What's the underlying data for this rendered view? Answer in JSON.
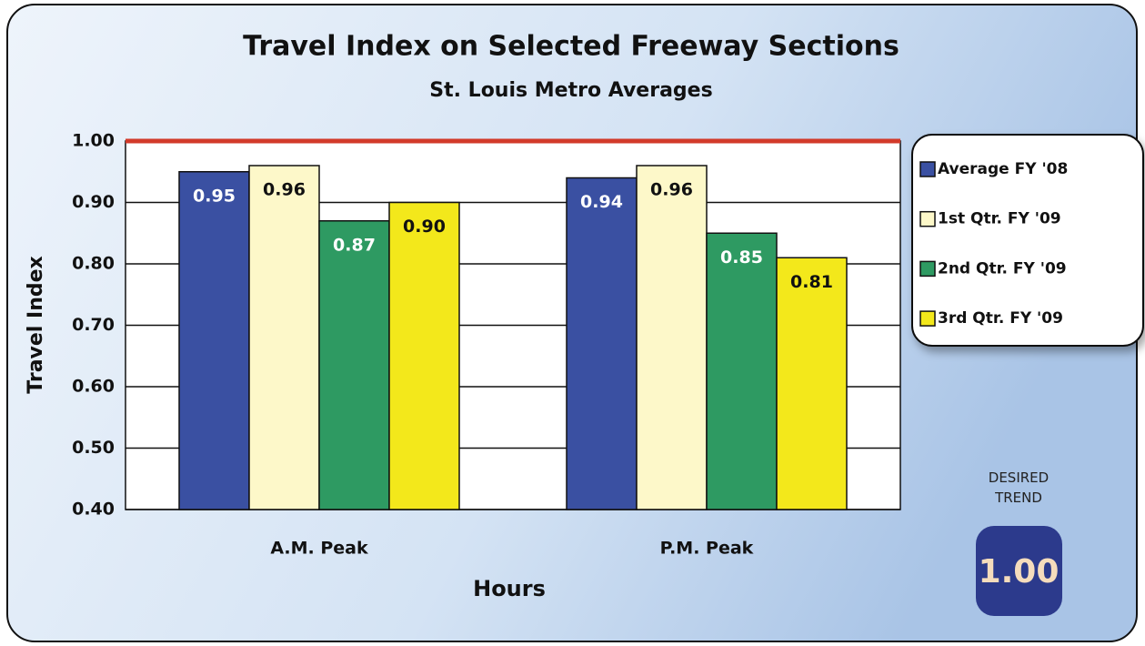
{
  "chart_data": {
    "type": "bar",
    "title": "Travel Index on Selected Freeway Sections",
    "subtitle": "St. Louis Metro Averages",
    "ylabel": "Travel Index",
    "xlabel": "Hours",
    "categories": [
      "A.M. Peak",
      "P.M. Peak"
    ],
    "series": [
      {
        "name": "Average FY '08",
        "color": "#3a50a2",
        "values": [
          0.95,
          0.94
        ],
        "value_labels": [
          "0.95",
          "0.94"
        ]
      },
      {
        "name": "1st Qtr. FY '09",
        "color": "#fdf8c9",
        "values": [
          0.96,
          0.96
        ],
        "value_labels": [
          "0.96",
          "0.96"
        ]
      },
      {
        "name": "2nd Qtr. FY '09",
        "color": "#2e9a62",
        "values": [
          0.87,
          0.85
        ],
        "value_labels": [
          "0.87",
          "0.85"
        ]
      },
      {
        "name": "3rd Qtr. FY '09",
        "color": "#f3e81b",
        "values": [
          0.9,
          0.81
        ],
        "value_labels": [
          "0.90",
          "0.81"
        ]
      }
    ],
    "ylim": [
      0.4,
      1.0
    ],
    "yticks": [
      {
        "value": 0.4,
        "label": "0.40"
      },
      {
        "value": 0.5,
        "label": "0.50"
      },
      {
        "value": 0.6,
        "label": "0.60"
      },
      {
        "value": 0.7,
        "label": "0.70"
      },
      {
        "value": 0.8,
        "label": "0.80"
      },
      {
        "value": 0.9,
        "label": "0.90"
      },
      {
        "value": 1.0,
        "label": "1.00"
      }
    ],
    "grid": true,
    "legend": "right",
    "target": {
      "text": "DESIRED TREND",
      "value": 1.0,
      "label": "1.00",
      "color": "#d23a2a"
    }
  }
}
